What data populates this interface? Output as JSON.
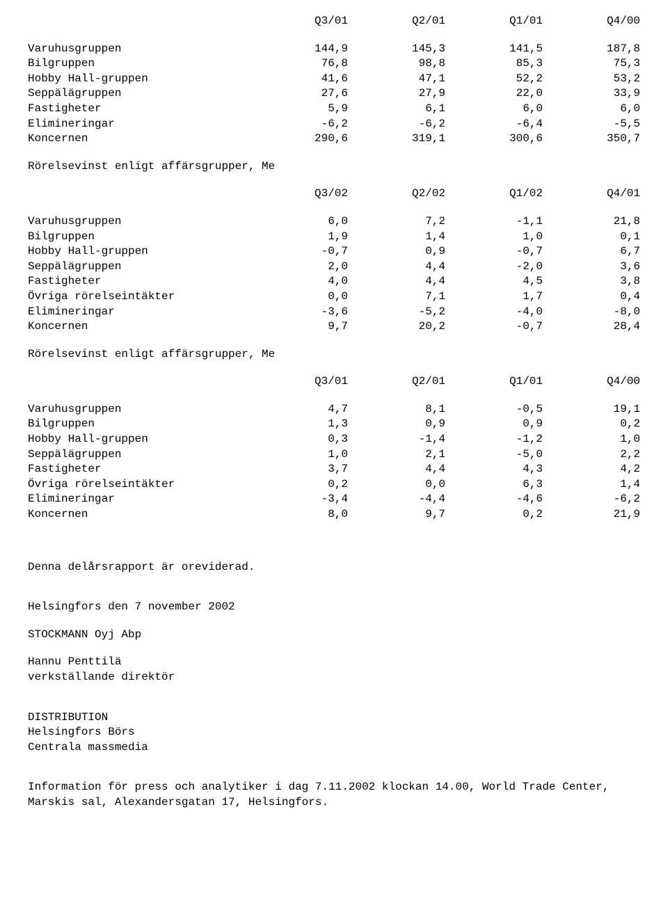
{
  "table1": {
    "headers": [
      "Q3/01",
      "Q2/01",
      "Q1/01",
      "Q4/00"
    ],
    "rows": [
      {
        "label": "Varuhusgruppen",
        "vals": [
          "144,9",
          "145,3",
          "141,5",
          "187,8"
        ]
      },
      {
        "label": "Bilgruppen",
        "vals": [
          "76,8",
          "98,8",
          "85,3",
          "75,3"
        ]
      },
      {
        "label": "Hobby Hall-gruppen",
        "vals": [
          "41,6",
          "47,1",
          "52,2",
          "53,2"
        ]
      },
      {
        "label": "Seppälägruppen",
        "vals": [
          "27,6",
          "27,9",
          "22,0",
          "33,9"
        ]
      },
      {
        "label": "Fastigheter",
        "vals": [
          "5,9",
          "6,1",
          "6,0",
          "6,0"
        ]
      },
      {
        "label": "Elimineringar",
        "vals": [
          "-6,2",
          "-6,2",
          "-6,4",
          "-5,5"
        ]
      },
      {
        "label": "Koncernen",
        "vals": [
          "290,6",
          "319,1",
          "300,6",
          "350,7"
        ]
      }
    ]
  },
  "title2": "Rörelsevinst enligt affärsgrupper, Me",
  "table2": {
    "headers": [
      "Q3/02",
      "Q2/02",
      "Q1/02",
      "Q4/01"
    ],
    "rows": [
      {
        "label": "Varuhusgruppen",
        "vals": [
          "6,0",
          "7,2",
          "-1,1",
          "21,8"
        ]
      },
      {
        "label": "Bilgruppen",
        "vals": [
          "1,9",
          "1,4",
          "1,0",
          "0,1"
        ]
      },
      {
        "label": "Hobby Hall-gruppen",
        "vals": [
          "-0,7",
          "0,9",
          "-0,7",
          "6,7"
        ]
      },
      {
        "label": "Seppälägruppen",
        "vals": [
          "2,0",
          "4,4",
          "-2,0",
          "3,6"
        ]
      },
      {
        "label": "Fastigheter",
        "vals": [
          "4,0",
          "4,4",
          "4,5",
          "3,8"
        ]
      },
      {
        "label": "Övriga rörelseintäkter",
        "vals": [
          "0,0",
          "7,1",
          "1,7",
          "0,4"
        ]
      },
      {
        "label": "Elimineringar",
        "vals": [
          "-3,6",
          "-5,2",
          "-4,0",
          "-8,0"
        ]
      },
      {
        "label": "Koncernen",
        "vals": [
          "9,7",
          "20,2",
          "-0,7",
          "28,4"
        ]
      }
    ]
  },
  "title3": "Rörelsevinst enligt affärsgrupper, Me",
  "table3": {
    "headers": [
      "Q3/01",
      "Q2/01",
      "Q1/01",
      "Q4/00"
    ],
    "rows": [
      {
        "label": "Varuhusgruppen",
        "vals": [
          "4,7",
          "8,1",
          "-0,5",
          "19,1"
        ]
      },
      {
        "label": "Bilgruppen",
        "vals": [
          "1,3",
          "0,9",
          "0,9",
          "0,2"
        ]
      },
      {
        "label": "Hobby Hall-gruppen",
        "vals": [
          "0,3",
          "-1,4",
          "-1,2",
          "1,0"
        ]
      },
      {
        "label": "Seppälägruppen",
        "vals": [
          "1,0",
          "2,1",
          "-5,0",
          "2,2"
        ]
      },
      {
        "label": "Fastigheter",
        "vals": [
          "3,7",
          "4,4",
          "4,3",
          "4,2"
        ]
      },
      {
        "label": "Övriga rörelseintäkter",
        "vals": [
          "0,2",
          "0,0",
          "6,3",
          "1,4"
        ]
      },
      {
        "label": "Elimineringar",
        "vals": [
          "-3,4",
          "-4,4",
          "-4,6",
          "-6,2"
        ]
      },
      {
        "label": "Koncernen",
        "vals": [
          "8,0",
          "9,7",
          "0,2",
          "21,9"
        ]
      }
    ]
  },
  "footer": {
    "l1": "Denna delårsrapport är oreviderad.",
    "l2": "Helsingfors den 7 november 2002",
    "l3": "STOCKMANN Oyj Abp",
    "l4": "Hannu Penttilä",
    "l5": "verkställande direktör",
    "l6": "DISTRIBUTION",
    "l7": "Helsingfors Börs",
    "l8": "Centrala massmedia",
    "l9": "Information för press och analytiker i dag 7.11.2002 klockan 14.00, World Trade Center, Marskis sal, Alexandersgatan 17, Helsingfors."
  }
}
